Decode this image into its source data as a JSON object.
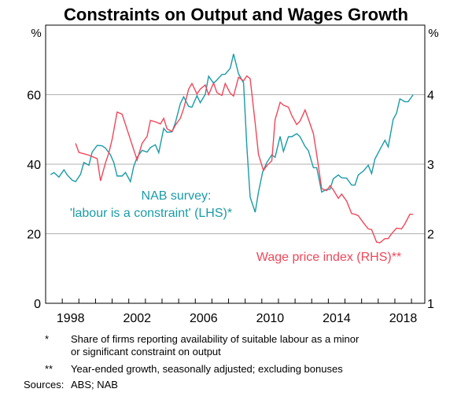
{
  "chart_data": {
    "type": "line",
    "title": "Constraints on Output and Wages Growth",
    "left_unit": "%",
    "right_unit": "%",
    "xlim": [
      1997,
      2019.8
    ],
    "ylim_left": [
      0,
      80
    ],
    "ylim_right": [
      1,
      5
    ],
    "left_ticks": [
      "0",
      "20",
      "40",
      "60"
    ],
    "right_ticks": [
      "1",
      "2",
      "3",
      "4"
    ],
    "x_tick_labels": [
      "1998",
      "2002",
      "2006",
      "2010",
      "2014",
      "2018"
    ],
    "grid": true,
    "series": [
      {
        "name": "NAB survey: 'labour is a constraint' (LHS)*",
        "label_lines": [
          "NAB survey:",
          "'labour is a constraint' (LHS)*"
        ],
        "axis": "left",
        "color": "#1a9ba6",
        "points": [
          [
            1997.3,
            37.0
          ],
          [
            1997.5,
            37.6
          ],
          [
            1997.8,
            36.3
          ],
          [
            1998.1,
            38.4
          ],
          [
            1998.3,
            36.9
          ],
          [
            1998.6,
            35.4
          ],
          [
            1998.8,
            35.0
          ],
          [
            1999.1,
            37.1
          ],
          [
            1999.3,
            40.5
          ],
          [
            1999.6,
            39.7
          ],
          [
            1999.8,
            43.5
          ],
          [
            2000.1,
            45.4
          ],
          [
            2000.4,
            45.3
          ],
          [
            2000.6,
            44.6
          ],
          [
            2000.9,
            42.7
          ],
          [
            2001.1,
            40.5
          ],
          [
            2001.3,
            36.6
          ],
          [
            2001.6,
            36.6
          ],
          [
            2001.8,
            37.6
          ],
          [
            2002.1,
            35.0
          ],
          [
            2002.3,
            39.4
          ],
          [
            2002.5,
            42.0
          ],
          [
            2002.8,
            44.0
          ],
          [
            2003.1,
            43.5
          ],
          [
            2003.3,
            44.8
          ],
          [
            2003.6,
            45.6
          ],
          [
            2003.8,
            43.3
          ],
          [
            2004.1,
            50.3
          ],
          [
            2004.3,
            49.2
          ],
          [
            2004.6,
            49.3
          ],
          [
            2004.8,
            51.9
          ],
          [
            2005.1,
            57.4
          ],
          [
            2005.3,
            59.4
          ],
          [
            2005.6,
            56.6
          ],
          [
            2005.8,
            56.4
          ],
          [
            2006.1,
            59.7
          ],
          [
            2006.3,
            57.7
          ],
          [
            2006.6,
            60.1
          ],
          [
            2006.8,
            65.3
          ],
          [
            2007.1,
            63.3
          ],
          [
            2007.3,
            64.2
          ],
          [
            2007.6,
            65.8
          ],
          [
            2007.8,
            65.9
          ],
          [
            2008.1,
            67.6
          ],
          [
            2008.3,
            71.7
          ],
          [
            2008.6,
            66.0
          ],
          [
            2008.9,
            63.4
          ],
          [
            2009.1,
            45.0
          ],
          [
            2009.3,
            30.5
          ],
          [
            2009.6,
            26.2
          ],
          [
            2009.8,
            32.0
          ],
          [
            2010.05,
            37.8
          ],
          [
            2010.3,
            40.5
          ],
          [
            2010.6,
            42.7
          ],
          [
            2010.8,
            42.0
          ],
          [
            2011.1,
            48.0
          ],
          [
            2011.3,
            43.7
          ],
          [
            2011.6,
            47.9
          ],
          [
            2011.8,
            47.9
          ],
          [
            2012.1,
            48.8
          ],
          [
            2012.3,
            47.9
          ],
          [
            2012.6,
            45.1
          ],
          [
            2012.8,
            43.9
          ],
          [
            2013.1,
            39.0
          ],
          [
            2013.3,
            39.0
          ],
          [
            2013.6,
            32.0
          ],
          [
            2013.9,
            32.8
          ],
          [
            2014.1,
            32.8
          ],
          [
            2014.3,
            35.8
          ],
          [
            2014.6,
            36.9
          ],
          [
            2014.8,
            36.1
          ],
          [
            2015.1,
            36.0
          ],
          [
            2015.4,
            34.0
          ],
          [
            2015.6,
            34.0
          ],
          [
            2015.8,
            36.9
          ],
          [
            2016.1,
            38.0
          ],
          [
            2016.4,
            39.7
          ],
          [
            2016.6,
            37.3
          ],
          [
            2016.8,
            41.5
          ],
          [
            2017.1,
            44.2
          ],
          [
            2017.4,
            46.9
          ],
          [
            2017.6,
            45.0
          ],
          [
            2017.9,
            52.9
          ],
          [
            2018.1,
            54.7
          ],
          [
            2018.3,
            58.8
          ],
          [
            2018.6,
            58.0
          ],
          [
            2018.8,
            58.0
          ],
          [
            2019.1,
            60.0
          ]
        ]
      },
      {
        "name": "Wage price index (RHS)**",
        "label_lines": [
          "Wage price index (RHS)**"
        ],
        "axis": "right",
        "color": "#f0475a",
        "points": [
          [
            1998.8,
            3.3
          ],
          [
            1999.0,
            3.17
          ],
          [
            1999.3,
            3.15
          ],
          [
            1999.6,
            3.13
          ],
          [
            1999.8,
            3.11
          ],
          [
            2000.1,
            3.08
          ],
          [
            2000.3,
            2.76
          ],
          [
            2000.6,
            3.02
          ],
          [
            2000.8,
            3.16
          ],
          [
            2001.0,
            3.36
          ],
          [
            2001.3,
            3.75
          ],
          [
            2001.6,
            3.72
          ],
          [
            2002.5,
            3.06
          ],
          [
            2002.8,
            3.3
          ],
          [
            2003.1,
            3.4
          ],
          [
            2003.3,
            3.63
          ],
          [
            2003.6,
            3.61
          ],
          [
            2003.9,
            3.58
          ],
          [
            2004.1,
            3.66
          ],
          [
            2004.3,
            3.51
          ],
          [
            2004.6,
            3.47
          ],
          [
            2004.8,
            3.56
          ],
          [
            2005.1,
            3.66
          ],
          [
            2005.3,
            3.8
          ],
          [
            2005.6,
            4.08
          ],
          [
            2005.8,
            4.16
          ],
          [
            2006.1,
            4.01
          ],
          [
            2006.3,
            4.08
          ],
          [
            2006.6,
            4.14
          ],
          [
            2006.8,
            4.0
          ],
          [
            2007.1,
            4.17
          ],
          [
            2007.3,
            4.03
          ],
          [
            2007.6,
            3.99
          ],
          [
            2007.8,
            4.16
          ],
          [
            2008.1,
            4.02
          ],
          [
            2008.3,
            3.98
          ],
          [
            2008.6,
            4.25
          ],
          [
            2008.9,
            4.2
          ],
          [
            2009.1,
            4.27
          ],
          [
            2009.3,
            4.23
          ],
          [
            2009.6,
            3.59
          ],
          [
            2009.8,
            3.14
          ],
          [
            2010.1,
            2.91
          ],
          [
            2010.3,
            2.98
          ],
          [
            2010.6,
            3.05
          ],
          [
            2010.8,
            3.64
          ],
          [
            2011.1,
            3.89
          ],
          [
            2011.3,
            3.85
          ],
          [
            2011.6,
            3.82
          ],
          [
            2011.8,
            3.7
          ],
          [
            2012.1,
            3.57
          ],
          [
            2012.3,
            3.62
          ],
          [
            2012.6,
            3.78
          ],
          [
            2012.8,
            3.65
          ],
          [
            2013.1,
            3.44
          ],
          [
            2013.3,
            3.14
          ],
          [
            2013.6,
            2.65
          ],
          [
            2013.9,
            2.62
          ],
          [
            2014.1,
            2.69
          ],
          [
            2014.3,
            2.63
          ],
          [
            2014.6,
            2.51
          ],
          [
            2014.8,
            2.57
          ],
          [
            2015.1,
            2.47
          ],
          [
            2015.4,
            2.29
          ],
          [
            2015.6,
            2.28
          ],
          [
            2015.8,
            2.26
          ],
          [
            2016.1,
            2.16
          ],
          [
            2016.4,
            2.07
          ],
          [
            2016.6,
            2.06
          ],
          [
            2016.9,
            1.88
          ],
          [
            2017.1,
            1.87
          ],
          [
            2017.4,
            1.93
          ],
          [
            2017.6,
            1.93
          ],
          [
            2017.8,
            2.0
          ],
          [
            2018.1,
            2.08
          ],
          [
            2018.4,
            2.07
          ],
          [
            2018.6,
            2.14
          ],
          [
            2018.9,
            2.28
          ],
          [
            2019.1,
            2.28
          ]
        ]
      }
    ]
  },
  "footnotes": [
    {
      "mark": "*",
      "text": "Share of firms reporting availability of suitable labour as a minor",
      "text2": "or significant constraint on output"
    },
    {
      "mark": "**",
      "text": "Year-ended growth, seasonally adjusted; excluding bonuses"
    }
  ],
  "sources": {
    "label": "Sources:",
    "text": "ABS; NAB"
  }
}
